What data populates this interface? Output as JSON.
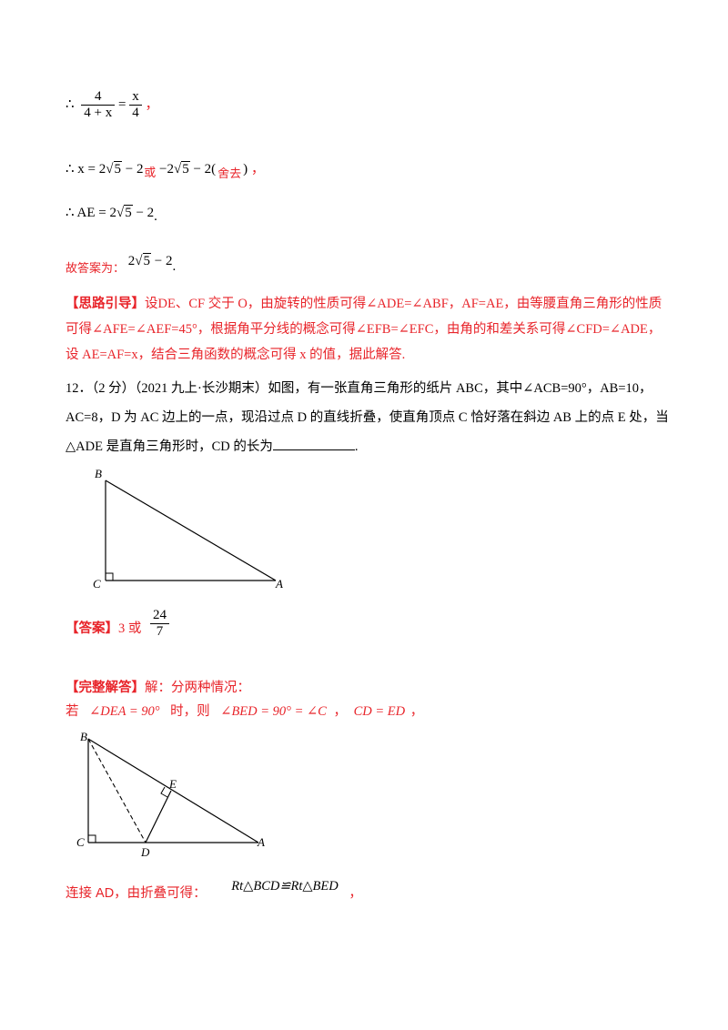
{
  "derivation": {
    "therefore": "∴",
    "eq1_num1": "4",
    "eq1_den1": "4 + x",
    "eq_sign": "=",
    "eq1_num2": "x",
    "eq1_den2": "4",
    "comma": "，",
    "eq2_prefix": "x = 2",
    "sqrt_arg": "5",
    "minus_two": " − 2",
    "or_word": "或",
    "eq2_alt_prefix": "−2",
    "eq2_alt_suffix": " − 2(",
    "discard": "舍去",
    "close_paren": ")",
    "eq3_prefix": "AE = 2",
    "period": ".",
    "answer_prefix": "故答案为：",
    "ans_prefix": "2"
  },
  "hint": {
    "label": "【思路引导】",
    "line1": "设DE、CF 交于 O，由旋转的性质可得∠ADE=∠ABF，AF=AE，由等腰直角三角形的性质",
    "line2": "可得∠AFE=∠AEF=45°，根据角平分线的概念可得∠EFB=∠EFC，由角的和差关系可得∠CFD=∠ADE，",
    "line3": "设 AE=AF=x，结合三角函数的概念可得 x 的值，据此解答."
  },
  "question": {
    "line1": "12．（2 分）（2021 九上·长沙期末）如图，有一张直角三角形的纸片 ABC，其中∠ACB=90°，AB=10，",
    "line2": "AC=8，D 为 AC 边上的一点，现沿过点 D 的直线折叠，使直角顶点 C 恰好落在斜边  AB 上的点 E 处，当",
    "line3_before": "△ADE 是直角三角形时，CD 的长为",
    "line3_after": "."
  },
  "figure1": {
    "label_b": "B",
    "label_c": "C",
    "label_a": "A"
  },
  "answer": {
    "label": "【答案】",
    "value": "3 或",
    "frac_num": "24",
    "frac_den": "7"
  },
  "solution": {
    "label": "【完整解答】",
    "intro": "解：分两种情况：",
    "case_if": "若",
    "cond1": "∠DEA = 90°",
    "case_then": "时，则",
    "cond2": "∠BED = 90° = ∠C",
    "sep": "，",
    "cond3": "CD = ED",
    "end": "，",
    "connect": "连接 AD，由折叠可得：",
    "congruence": "Rt△BCD≌Rt△BED",
    "end2": "，"
  },
  "figure2": {
    "label_b": "B",
    "label_c": "C",
    "label_d": "D",
    "label_e": "E",
    "label_a": "A"
  }
}
